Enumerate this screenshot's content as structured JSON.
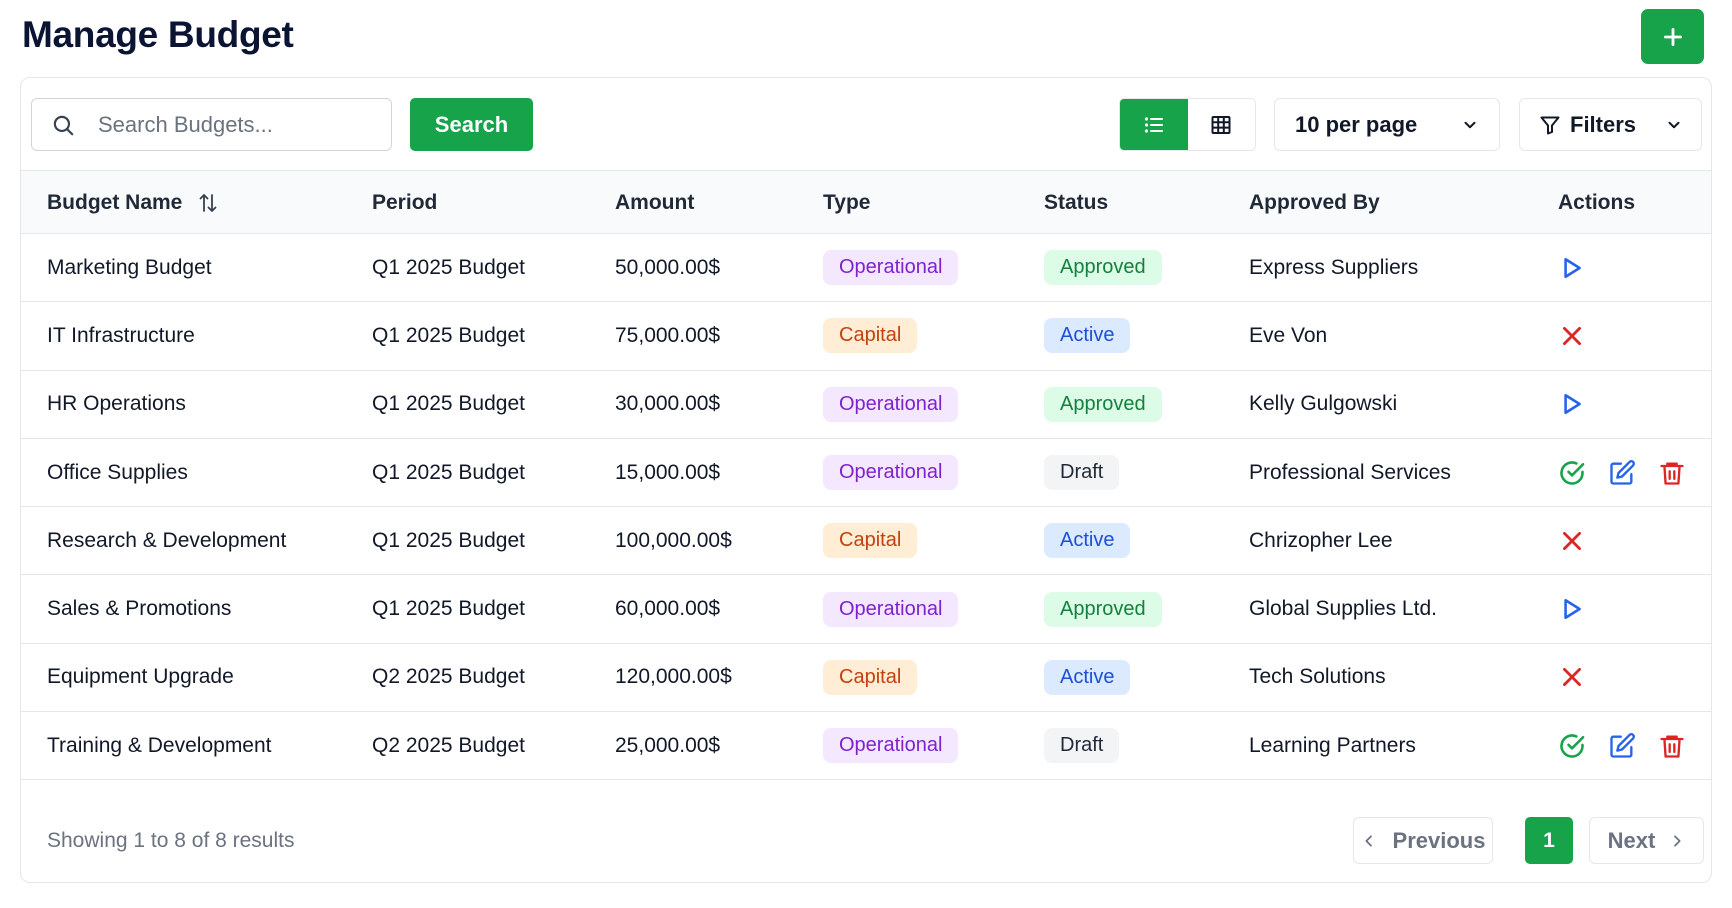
{
  "page": {
    "title": "Manage Budget"
  },
  "toolbar": {
    "search_placeholder": "Search Budgets...",
    "search_value": "",
    "search_button": "Search",
    "view_mode": "list",
    "per_page": "10 per page",
    "filters": "Filters"
  },
  "table": {
    "headers": {
      "name": "Budget Name",
      "period": "Period",
      "amount": "Amount",
      "type": "Type",
      "status": "Status",
      "approved_by": "Approved By",
      "actions": "Actions"
    },
    "rows": [
      {
        "name": "Marketing Budget",
        "period": "Q1 2025 Budget",
        "amount": "50,000.00$",
        "type": "Operational",
        "status": "Approved",
        "approved_by": "Express Suppliers",
        "actions": [
          "play-icon"
        ]
      },
      {
        "name": "IT Infrastructure",
        "period": "Q1 2025 Budget",
        "amount": "75,000.00$",
        "type": "Capital",
        "status": "Active",
        "approved_by": "Eve Von",
        "actions": [
          "close-icon"
        ]
      },
      {
        "name": "HR Operations",
        "period": "Q1 2025 Budget",
        "amount": "30,000.00$",
        "type": "Operational",
        "status": "Approved",
        "approved_by": "Kelly Gulgowski",
        "actions": [
          "play-icon"
        ]
      },
      {
        "name": "Office Supplies",
        "period": "Q1 2025 Budget",
        "amount": "15,000.00$",
        "type": "Operational",
        "status": "Draft",
        "approved_by": "Professional Services",
        "actions": [
          "check-circle-icon",
          "edit-icon",
          "trash-icon"
        ]
      },
      {
        "name": "Research & Development",
        "period": "Q1 2025 Budget",
        "amount": "100,000.00$",
        "type": "Capital",
        "status": "Active",
        "approved_by": "Chrizopher Lee",
        "actions": [
          "close-icon"
        ]
      },
      {
        "name": "Sales & Promotions",
        "period": "Q1 2025 Budget",
        "amount": "60,000.00$",
        "type": "Operational",
        "status": "Approved",
        "approved_by": "Global Supplies Ltd.",
        "actions": [
          "play-icon"
        ]
      },
      {
        "name": "Equipment Upgrade",
        "period": "Q2 2025 Budget",
        "amount": "120,000.00$",
        "type": "Capital",
        "status": "Active",
        "approved_by": "Tech Solutions",
        "actions": [
          "close-icon"
        ]
      },
      {
        "name": "Training & Development",
        "period": "Q2 2025 Budget",
        "amount": "25,000.00$",
        "type": "Operational",
        "status": "Draft",
        "approved_by": "Learning Partners",
        "actions": [
          "check-circle-icon",
          "edit-icon",
          "trash-icon"
        ]
      }
    ]
  },
  "pagination": {
    "summary": "Showing 1 to 8 of 8 results",
    "previous": "Previous",
    "current_page": "1",
    "next": "Next"
  },
  "colors": {
    "accent": "#16a34a",
    "play": "#2563eb",
    "close": "#dc2626",
    "check": "#16a34a",
    "edit": "#2563eb",
    "trash": "#dc2626"
  }
}
